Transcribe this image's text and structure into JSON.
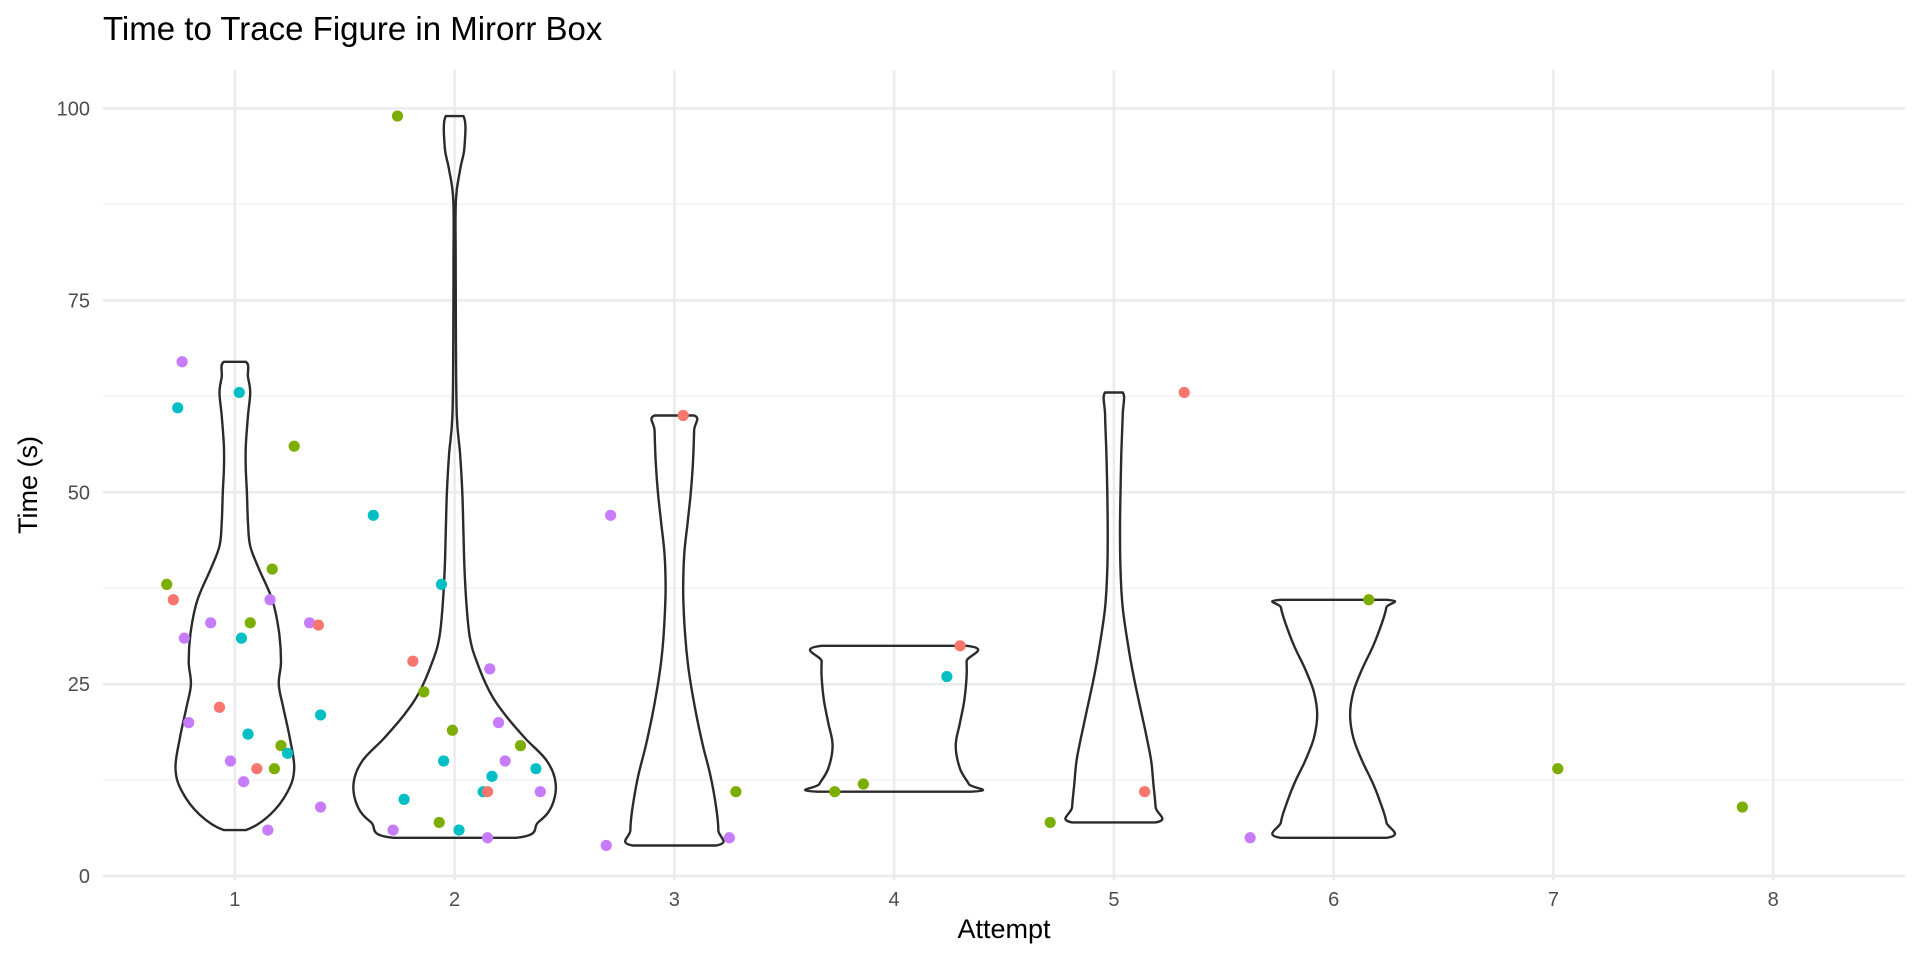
{
  "chart_data": {
    "type": "violin+jitter",
    "title": "Time to Trace Figure in Mirorr Box",
    "xlabel": "Attempt",
    "ylabel": "Time (s)",
    "categories": [
      "1",
      "2",
      "3",
      "4",
      "5",
      "6",
      "7",
      "8"
    ],
    "y_ticks": [
      "0",
      "25",
      "50",
      "75",
      "100"
    ],
    "ylim": [
      -0.5,
      105
    ],
    "xlim": [
      0.4,
      8.6
    ],
    "grid": true,
    "legend": "none",
    "group_colors": [
      "#f8766d",
      "#7cae00",
      "#00bfc4",
      "#c77cff"
    ],
    "violins": [
      {
        "attempt": 1,
        "profile": [
          [
            6,
            0.05
          ],
          [
            8,
            0.16
          ],
          [
            11,
            0.24
          ],
          [
            14,
            0.27
          ],
          [
            18,
            0.25
          ],
          [
            22,
            0.22
          ],
          [
            25,
            0.2
          ],
          [
            28,
            0.21
          ],
          [
            32,
            0.2
          ],
          [
            36,
            0.17
          ],
          [
            40,
            0.11
          ],
          [
            43,
            0.07
          ],
          [
            46,
            0.06
          ],
          [
            50,
            0.055
          ],
          [
            53,
            0.05
          ],
          [
            56,
            0.05
          ],
          [
            60,
            0.06
          ],
          [
            63,
            0.07
          ],
          [
            65,
            0.06
          ],
          [
            67,
            0.05
          ]
        ]
      },
      {
        "attempt": 2,
        "profile": [
          [
            5,
            0.28
          ],
          [
            7,
            0.38
          ],
          [
            9,
            0.44
          ],
          [
            12,
            0.46
          ],
          [
            15,
            0.42
          ],
          [
            18,
            0.32
          ],
          [
            21,
            0.23
          ],
          [
            24,
            0.16
          ],
          [
            28,
            0.1
          ],
          [
            31,
            0.07
          ],
          [
            35,
            0.055
          ],
          [
            40,
            0.045
          ],
          [
            45,
            0.04
          ],
          [
            50,
            0.035
          ],
          [
            55,
            0.025
          ],
          [
            60,
            0.01
          ],
          [
            70,
            0.006
          ],
          [
            80,
            0.005
          ],
          [
            88,
            0.006
          ],
          [
            92,
            0.025
          ],
          [
            95,
            0.045
          ],
          [
            99,
            0.04
          ]
        ]
      },
      {
        "attempt": 3,
        "profile": [
          [
            4,
            0.19
          ],
          [
            6,
            0.2
          ],
          [
            9,
            0.19
          ],
          [
            13,
            0.165
          ],
          [
            17,
            0.13
          ],
          [
            21,
            0.1
          ],
          [
            25,
            0.075
          ],
          [
            28,
            0.06
          ],
          [
            31,
            0.05
          ],
          [
            35,
            0.042
          ],
          [
            38,
            0.04
          ],
          [
            42,
            0.045
          ],
          [
            46,
            0.06
          ],
          [
            50,
            0.075
          ],
          [
            54,
            0.085
          ],
          [
            58,
            0.09
          ],
          [
            60,
            0.09
          ]
        ]
      },
      {
        "attempt": 4,
        "profile": [
          [
            11,
            0.35
          ],
          [
            12,
            0.34
          ],
          [
            14,
            0.3
          ],
          [
            17,
            0.28
          ],
          [
            20,
            0.3
          ],
          [
            23,
            0.32
          ],
          [
            26,
            0.33
          ],
          [
            28,
            0.33
          ],
          [
            30,
            0.33
          ]
        ]
      },
      {
        "attempt": 5,
        "profile": [
          [
            7,
            0.19
          ],
          [
            9,
            0.19
          ],
          [
            12,
            0.18
          ],
          [
            15,
            0.17
          ],
          [
            18,
            0.15
          ],
          [
            22,
            0.12
          ],
          [
            26,
            0.09
          ],
          [
            30,
            0.065
          ],
          [
            35,
            0.04
          ],
          [
            40,
            0.03
          ],
          [
            45,
            0.028
          ],
          [
            50,
            0.03
          ],
          [
            55,
            0.034
          ],
          [
            60,
            0.04
          ],
          [
            63,
            0.04
          ]
        ]
      },
      {
        "attempt": 6,
        "profile": [
          [
            5,
            0.24
          ],
          [
            7,
            0.24
          ],
          [
            9,
            0.22
          ],
          [
            12,
            0.18
          ],
          [
            15,
            0.13
          ],
          [
            18,
            0.09
          ],
          [
            21,
            0.075
          ],
          [
            24,
            0.09
          ],
          [
            27,
            0.13
          ],
          [
            30,
            0.18
          ],
          [
            33,
            0.22
          ],
          [
            35,
            0.24
          ],
          [
            36,
            0.24
          ]
        ]
      }
    ],
    "points": [
      {
        "x": 0.69,
        "y": 38,
        "g": 1
      },
      {
        "x": 0.72,
        "y": 36,
        "g": 0
      },
      {
        "x": 0.74,
        "y": 61,
        "g": 2
      },
      {
        "x": 0.76,
        "y": 67,
        "g": 3
      },
      {
        "x": 0.77,
        "y": 31,
        "g": 3
      },
      {
        "x": 0.79,
        "y": 20,
        "g": 3
      },
      {
        "x": 0.89,
        "y": 33,
        "g": 3
      },
      {
        "x": 0.93,
        "y": 22,
        "g": 0
      },
      {
        "x": 0.98,
        "y": 15,
        "g": 3
      },
      {
        "x": 1.02,
        "y": 63,
        "g": 2
      },
      {
        "x": 1.03,
        "y": 31,
        "g": 2
      },
      {
        "x": 1.04,
        "y": 12.3,
        "g": 3
      },
      {
        "x": 1.06,
        "y": 18.5,
        "g": 2
      },
      {
        "x": 1.07,
        "y": 33,
        "g": 1
      },
      {
        "x": 1.1,
        "y": 14,
        "g": 0
      },
      {
        "x": 1.15,
        "y": 6,
        "g": 3
      },
      {
        "x": 1.16,
        "y": 36,
        "g": 3
      },
      {
        "x": 1.17,
        "y": 40,
        "g": 1
      },
      {
        "x": 1.18,
        "y": 14,
        "g": 1
      },
      {
        "x": 1.21,
        "y": 17,
        "g": 1
      },
      {
        "x": 1.24,
        "y": 16,
        "g": 2
      },
      {
        "x": 1.27,
        "y": 56,
        "g": 1
      },
      {
        "x": 1.34,
        "y": 33,
        "g": 3
      },
      {
        "x": 1.38,
        "y": 32.7,
        "g": 0
      },
      {
        "x": 1.39,
        "y": 21,
        "g": 2
      },
      {
        "x": 1.39,
        "y": 9,
        "g": 3
      },
      {
        "x": 1.63,
        "y": 47,
        "g": 2
      },
      {
        "x": 1.72,
        "y": 6,
        "g": 3
      },
      {
        "x": 1.74,
        "y": 99,
        "g": 1
      },
      {
        "x": 1.77,
        "y": 10,
        "g": 2
      },
      {
        "x": 1.81,
        "y": 28,
        "g": 0
      },
      {
        "x": 1.86,
        "y": 24,
        "g": 1
      },
      {
        "x": 1.93,
        "y": 7,
        "g": 1
      },
      {
        "x": 1.94,
        "y": 38,
        "g": 2
      },
      {
        "x": 1.95,
        "y": 15,
        "g": 2
      },
      {
        "x": 1.99,
        "y": 19,
        "g": 1
      },
      {
        "x": 2.02,
        "y": 6,
        "g": 2
      },
      {
        "x": 2.13,
        "y": 11,
        "g": 2
      },
      {
        "x": 2.15,
        "y": 11,
        "g": 0
      },
      {
        "x": 2.15,
        "y": 5,
        "g": 3
      },
      {
        "x": 2.16,
        "y": 27,
        "g": 3
      },
      {
        "x": 2.17,
        "y": 13,
        "g": 2
      },
      {
        "x": 2.2,
        "y": 20,
        "g": 3
      },
      {
        "x": 2.23,
        "y": 15,
        "g": 3
      },
      {
        "x": 2.3,
        "y": 17,
        "g": 1
      },
      {
        "x": 2.37,
        "y": 14,
        "g": 2
      },
      {
        "x": 2.39,
        "y": 11,
        "g": 3
      },
      {
        "x": 2.69,
        "y": 4,
        "g": 3
      },
      {
        "x": 2.71,
        "y": 47,
        "g": 3
      },
      {
        "x": 3.04,
        "y": 60,
        "g": 0
      },
      {
        "x": 3.25,
        "y": 5,
        "g": 3
      },
      {
        "x": 3.28,
        "y": 11,
        "g": 1
      },
      {
        "x": 3.73,
        "y": 11,
        "g": 1
      },
      {
        "x": 3.86,
        "y": 12,
        "g": 1
      },
      {
        "x": 4.24,
        "y": 26,
        "g": 2
      },
      {
        "x": 4.3,
        "y": 30,
        "g": 0
      },
      {
        "x": 4.71,
        "y": 7,
        "g": 1
      },
      {
        "x": 5.14,
        "y": 11,
        "g": 0
      },
      {
        "x": 5.32,
        "y": 63,
        "g": 0
      },
      {
        "x": 5.62,
        "y": 5,
        "g": 3
      },
      {
        "x": 6.16,
        "y": 36,
        "g": 1
      },
      {
        "x": 7.02,
        "y": 14,
        "g": 1
      },
      {
        "x": 7.86,
        "y": 9,
        "g": 1
      }
    ]
  }
}
